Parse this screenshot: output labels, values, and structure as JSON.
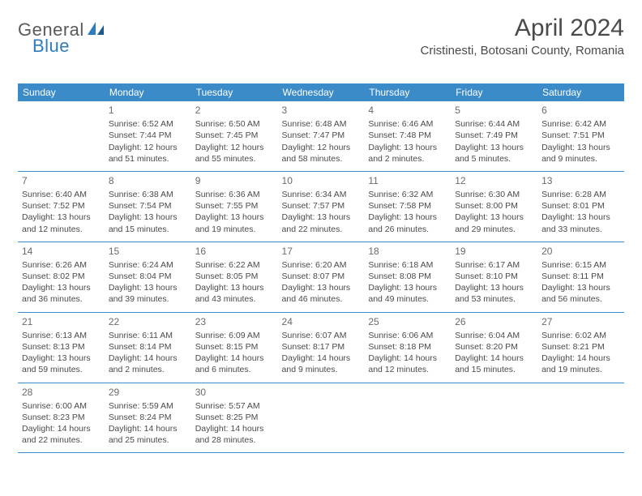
{
  "logo": {
    "part1": "General",
    "part2": "Blue"
  },
  "title": "April 2024",
  "location": "Cristinesti, Botosani County, Romania",
  "calendar": {
    "type": "table",
    "header_bg": "#3b8bc8",
    "header_text_color": "#ffffff",
    "border_color": "#3b8bc8",
    "text_color": "#4a4a4a",
    "columns": [
      "Sunday",
      "Monday",
      "Tuesday",
      "Wednesday",
      "Thursday",
      "Friday",
      "Saturday"
    ],
    "weeks": [
      [
        null,
        {
          "n": "1",
          "sr": "6:52 AM",
          "ss": "7:44 PM",
          "dl": "12 hours and 51 minutes."
        },
        {
          "n": "2",
          "sr": "6:50 AM",
          "ss": "7:45 PM",
          "dl": "12 hours and 55 minutes."
        },
        {
          "n": "3",
          "sr": "6:48 AM",
          "ss": "7:47 PM",
          "dl": "12 hours and 58 minutes."
        },
        {
          "n": "4",
          "sr": "6:46 AM",
          "ss": "7:48 PM",
          "dl": "13 hours and 2 minutes."
        },
        {
          "n": "5",
          "sr": "6:44 AM",
          "ss": "7:49 PM",
          "dl": "13 hours and 5 minutes."
        },
        {
          "n": "6",
          "sr": "6:42 AM",
          "ss": "7:51 PM",
          "dl": "13 hours and 9 minutes."
        }
      ],
      [
        {
          "n": "7",
          "sr": "6:40 AM",
          "ss": "7:52 PM",
          "dl": "13 hours and 12 minutes."
        },
        {
          "n": "8",
          "sr": "6:38 AM",
          "ss": "7:54 PM",
          "dl": "13 hours and 15 minutes."
        },
        {
          "n": "9",
          "sr": "6:36 AM",
          "ss": "7:55 PM",
          "dl": "13 hours and 19 minutes."
        },
        {
          "n": "10",
          "sr": "6:34 AM",
          "ss": "7:57 PM",
          "dl": "13 hours and 22 minutes."
        },
        {
          "n": "11",
          "sr": "6:32 AM",
          "ss": "7:58 PM",
          "dl": "13 hours and 26 minutes."
        },
        {
          "n": "12",
          "sr": "6:30 AM",
          "ss": "8:00 PM",
          "dl": "13 hours and 29 minutes."
        },
        {
          "n": "13",
          "sr": "6:28 AM",
          "ss": "8:01 PM",
          "dl": "13 hours and 33 minutes."
        }
      ],
      [
        {
          "n": "14",
          "sr": "6:26 AM",
          "ss": "8:02 PM",
          "dl": "13 hours and 36 minutes."
        },
        {
          "n": "15",
          "sr": "6:24 AM",
          "ss": "8:04 PM",
          "dl": "13 hours and 39 minutes."
        },
        {
          "n": "16",
          "sr": "6:22 AM",
          "ss": "8:05 PM",
          "dl": "13 hours and 43 minutes."
        },
        {
          "n": "17",
          "sr": "6:20 AM",
          "ss": "8:07 PM",
          "dl": "13 hours and 46 minutes."
        },
        {
          "n": "18",
          "sr": "6:18 AM",
          "ss": "8:08 PM",
          "dl": "13 hours and 49 minutes."
        },
        {
          "n": "19",
          "sr": "6:17 AM",
          "ss": "8:10 PM",
          "dl": "13 hours and 53 minutes."
        },
        {
          "n": "20",
          "sr": "6:15 AM",
          "ss": "8:11 PM",
          "dl": "13 hours and 56 minutes."
        }
      ],
      [
        {
          "n": "21",
          "sr": "6:13 AM",
          "ss": "8:13 PM",
          "dl": "13 hours and 59 minutes."
        },
        {
          "n": "22",
          "sr": "6:11 AM",
          "ss": "8:14 PM",
          "dl": "14 hours and 2 minutes."
        },
        {
          "n": "23",
          "sr": "6:09 AM",
          "ss": "8:15 PM",
          "dl": "14 hours and 6 minutes."
        },
        {
          "n": "24",
          "sr": "6:07 AM",
          "ss": "8:17 PM",
          "dl": "14 hours and 9 minutes."
        },
        {
          "n": "25",
          "sr": "6:06 AM",
          "ss": "8:18 PM",
          "dl": "14 hours and 12 minutes."
        },
        {
          "n": "26",
          "sr": "6:04 AM",
          "ss": "8:20 PM",
          "dl": "14 hours and 15 minutes."
        },
        {
          "n": "27",
          "sr": "6:02 AM",
          "ss": "8:21 PM",
          "dl": "14 hours and 19 minutes."
        }
      ],
      [
        {
          "n": "28",
          "sr": "6:00 AM",
          "ss": "8:23 PM",
          "dl": "14 hours and 22 minutes."
        },
        {
          "n": "29",
          "sr": "5:59 AM",
          "ss": "8:24 PM",
          "dl": "14 hours and 25 minutes."
        },
        {
          "n": "30",
          "sr": "5:57 AM",
          "ss": "8:25 PM",
          "dl": "14 hours and 28 minutes."
        },
        null,
        null,
        null,
        null
      ]
    ],
    "labels": {
      "sunrise": "Sunrise:",
      "sunset": "Sunset:",
      "daylight": "Daylight:"
    }
  }
}
